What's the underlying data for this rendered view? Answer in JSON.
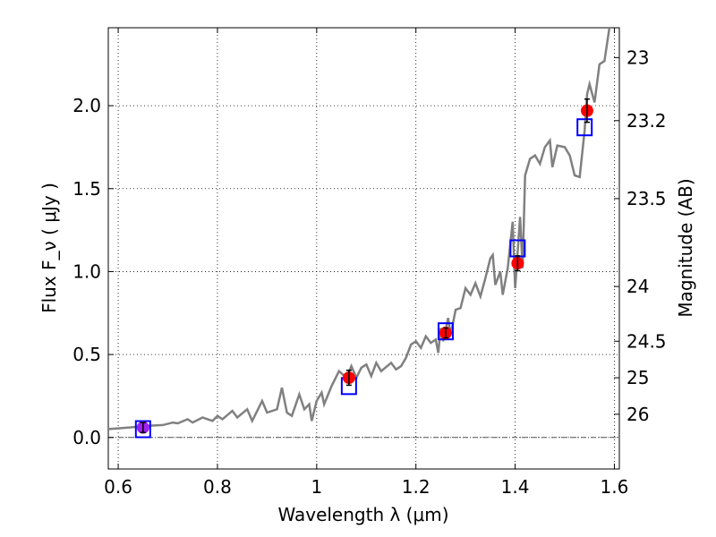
{
  "chart_data": {
    "type": "scatter",
    "title": "",
    "xlabel": "Wavelength λ (μm)",
    "ylabel": "Flux F_ν ( μJy )",
    "ylabel_right": "Magnitude (AB)",
    "xlim": [
      0.58,
      1.61
    ],
    "ylim": [
      -0.19,
      2.47
    ],
    "grid": true,
    "x_ticks": [
      0.6,
      0.8,
      1.0,
      1.2,
      1.4,
      1.6
    ],
    "x_tick_labels": [
      "0.6",
      "0.8",
      "1",
      "1.2",
      "1.4",
      "1.6"
    ],
    "y_ticks": [
      0.0,
      0.5,
      1.0,
      1.5,
      2.0
    ],
    "y_tick_labels": [
      "0.0",
      "0.5",
      "1.0",
      "1.5",
      "2.0"
    ],
    "right_ticks": [
      {
        "label": "23",
        "flux": 2.29
      },
      {
        "label": "23.2",
        "flux": 1.91
      },
      {
        "label": "23.5",
        "flux": 1.44
      },
      {
        "label": "24",
        "flux": 0.91
      },
      {
        "label": "24.5",
        "flux": 0.58
      },
      {
        "label": "25",
        "flux": 0.36
      },
      {
        "label": "26",
        "flux": 0.14
      }
    ],
    "reference_line_y": 0.0,
    "series": [
      {
        "kind": "model-spectrum",
        "color": "#808080",
        "points": [
          [
            0.58,
            0.05
          ],
          [
            0.62,
            0.06
          ],
          [
            0.66,
            0.07
          ],
          [
            0.69,
            0.075
          ],
          [
            0.71,
            0.09
          ],
          [
            0.72,
            0.085
          ],
          [
            0.74,
            0.11
          ],
          [
            0.75,
            0.09
          ],
          [
            0.77,
            0.12
          ],
          [
            0.79,
            0.1
          ],
          [
            0.8,
            0.13
          ],
          [
            0.81,
            0.11
          ],
          [
            0.83,
            0.16
          ],
          [
            0.84,
            0.12
          ],
          [
            0.86,
            0.17
          ],
          [
            0.87,
            0.1
          ],
          [
            0.89,
            0.22
          ],
          [
            0.9,
            0.15
          ],
          [
            0.92,
            0.17
          ],
          [
            0.93,
            0.3
          ],
          [
            0.94,
            0.15
          ],
          [
            0.95,
            0.13
          ],
          [
            0.965,
            0.26
          ],
          [
            0.975,
            0.17
          ],
          [
            0.985,
            0.2
          ],
          [
            0.99,
            0.1
          ],
          [
            1.0,
            0.22
          ],
          [
            1.01,
            0.27
          ],
          [
            1.015,
            0.2
          ],
          [
            1.03,
            0.31
          ],
          [
            1.045,
            0.4
          ],
          [
            1.06,
            0.36
          ],
          [
            1.07,
            0.43
          ],
          [
            1.08,
            0.36
          ],
          [
            1.09,
            0.42
          ],
          [
            1.1,
            0.44
          ],
          [
            1.11,
            0.37
          ],
          [
            1.12,
            0.45
          ],
          [
            1.13,
            0.4
          ],
          [
            1.15,
            0.45
          ],
          [
            1.16,
            0.41
          ],
          [
            1.17,
            0.43
          ],
          [
            1.18,
            0.48
          ],
          [
            1.19,
            0.56
          ],
          [
            1.2,
            0.58
          ],
          [
            1.21,
            0.54
          ],
          [
            1.22,
            0.61
          ],
          [
            1.23,
            0.57
          ],
          [
            1.24,
            0.59
          ],
          [
            1.245,
            0.51
          ],
          [
            1.25,
            0.66
          ],
          [
            1.255,
            0.58
          ],
          [
            1.265,
            0.72
          ],
          [
            1.27,
            0.62
          ],
          [
            1.28,
            0.77
          ],
          [
            1.29,
            0.78
          ],
          [
            1.3,
            0.9
          ],
          [
            1.31,
            0.86
          ],
          [
            1.32,
            0.93
          ],
          [
            1.33,
            0.85
          ],
          [
            1.34,
            0.96
          ],
          [
            1.35,
            1.08
          ],
          [
            1.355,
            1.1
          ],
          [
            1.36,
            0.92
          ],
          [
            1.37,
            1.0
          ],
          [
            1.375,
            0.86
          ],
          [
            1.385,
            1.02
          ],
          [
            1.395,
            1.3
          ],
          [
            1.4,
            0.9
          ],
          [
            1.41,
            1.33
          ],
          [
            1.415,
            1.02
          ],
          [
            1.42,
            1.58
          ],
          [
            1.43,
            1.68
          ],
          [
            1.44,
            1.7
          ],
          [
            1.45,
            1.65
          ],
          [
            1.46,
            1.75
          ],
          [
            1.47,
            1.79
          ],
          [
            1.475,
            1.63
          ],
          [
            1.485,
            1.76
          ],
          [
            1.5,
            1.75
          ],
          [
            1.51,
            1.7
          ],
          [
            1.52,
            1.58
          ],
          [
            1.53,
            1.57
          ],
          [
            1.54,
            1.85
          ],
          [
            1.545,
            2.07
          ],
          [
            1.55,
            2.13
          ],
          [
            1.56,
            2.02
          ],
          [
            1.57,
            2.25
          ],
          [
            1.58,
            2.27
          ],
          [
            1.59,
            2.47
          ]
        ]
      },
      {
        "kind": "observed-flux",
        "color": "#ff0000",
        "points": [
          {
            "x": 0.65,
            "y": 0.06,
            "err": 0.03,
            "color": "#a020f0"
          },
          {
            "x": 1.065,
            "y": 0.36,
            "err": 0.045
          },
          {
            "x": 1.26,
            "y": 0.63,
            "err": 0.03
          },
          {
            "x": 1.405,
            "y": 1.05,
            "err": 0.045
          },
          {
            "x": 1.545,
            "y": 1.97,
            "err": 0.07
          }
        ]
      },
      {
        "kind": "model-flux",
        "color": "#0000ff",
        "points": [
          {
            "x": 0.65,
            "y": 0.05
          },
          {
            "x": 1.065,
            "y": 0.31
          },
          {
            "x": 1.26,
            "y": 0.64
          },
          {
            "x": 1.405,
            "y": 1.14
          },
          {
            "x": 1.54,
            "y": 1.87
          }
        ]
      }
    ]
  }
}
